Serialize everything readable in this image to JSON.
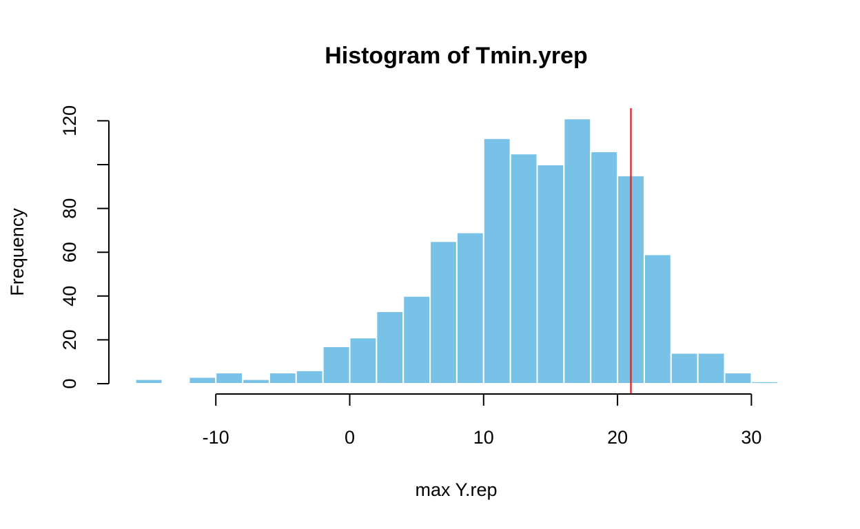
{
  "chart_data": {
    "type": "bar",
    "title": "Histogram of Tmin.yrep",
    "xlabel": "max Y.rep",
    "ylabel": "Frequency",
    "bin_width": 2,
    "bins": [
      {
        "start": -16,
        "end": -14,
        "count": 2
      },
      {
        "start": -14,
        "end": -12,
        "count": 0
      },
      {
        "start": -12,
        "end": -10,
        "count": 3
      },
      {
        "start": -10,
        "end": -8,
        "count": 5
      },
      {
        "start": -8,
        "end": -6,
        "count": 2
      },
      {
        "start": -6,
        "end": -4,
        "count": 5
      },
      {
        "start": -4,
        "end": -2,
        "count": 6
      },
      {
        "start": -2,
        "end": 0,
        "count": 17
      },
      {
        "start": 0,
        "end": 2,
        "count": 21
      },
      {
        "start": 2,
        "end": 4,
        "count": 33
      },
      {
        "start": 4,
        "end": 6,
        "count": 40
      },
      {
        "start": 6,
        "end": 8,
        "count": 65
      },
      {
        "start": 8,
        "end": 10,
        "count": 69
      },
      {
        "start": 10,
        "end": 12,
        "count": 112
      },
      {
        "start": 12,
        "end": 14,
        "count": 105
      },
      {
        "start": 14,
        "end": 16,
        "count": 100
      },
      {
        "start": 16,
        "end": 18,
        "count": 121
      },
      {
        "start": 18,
        "end": 20,
        "count": 106
      },
      {
        "start": 20,
        "end": 22,
        "count": 95
      },
      {
        "start": 22,
        "end": 24,
        "count": 59
      },
      {
        "start": 24,
        "end": 26,
        "count": 14
      },
      {
        "start": 26,
        "end": 28,
        "count": 14
      },
      {
        "start": 28,
        "end": 30,
        "count": 5
      },
      {
        "start": 30,
        "end": 32,
        "count": 1
      }
    ],
    "xlim": [
      -16,
      32
    ],
    "ylim": [
      0,
      126
    ],
    "x_ticks": [
      -10,
      0,
      10,
      20,
      30
    ],
    "y_ticks": [
      0,
      20,
      40,
      60,
      80,
      100,
      120
    ],
    "y_tick_labels": [
      "0",
      "20",
      "40",
      "60",
      "80",
      "",
      "120"
    ],
    "reference_line": {
      "x": 21,
      "color": "#e41a1c"
    },
    "bar_color": "#77c2e6",
    "bar_border_color": "#ffffff",
    "grid": false
  }
}
